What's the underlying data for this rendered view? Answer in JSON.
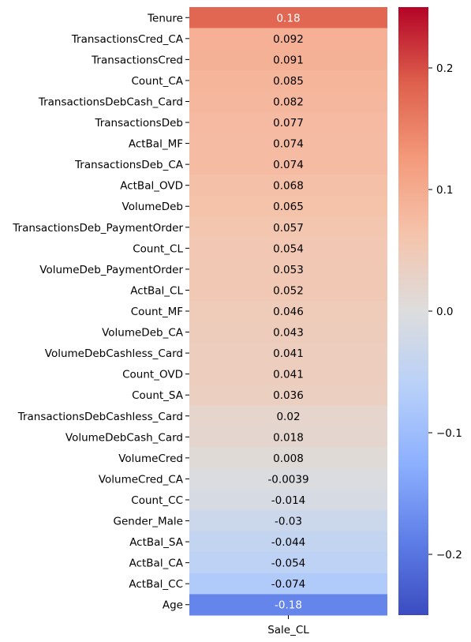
{
  "chart_data": {
    "type": "heatmap",
    "title": "",
    "xlabel": "",
    "ylabel": "",
    "column": "Sale_CL",
    "colormap": "coolwarm",
    "vmin": -0.25,
    "vmax": 0.25,
    "colorbar_ticks": [
      -0.2,
      -0.1,
      0.0,
      0.1,
      0.2
    ],
    "colorbar_tick_labels": [
      "−0.2",
      "−0.1",
      "0.0",
      "0.1",
      "0.2"
    ],
    "rows": [
      {
        "label": "Tenure",
        "value": 0.18,
        "text": "0.18"
      },
      {
        "label": "TransactionsCred_CA",
        "value": 0.092,
        "text": "0.092"
      },
      {
        "label": "TransactionsCred",
        "value": 0.091,
        "text": "0.091"
      },
      {
        "label": "Count_CA",
        "value": 0.085,
        "text": "0.085"
      },
      {
        "label": "TransactionsDebCash_Card",
        "value": 0.082,
        "text": "0.082"
      },
      {
        "label": "TransactionsDeb",
        "value": 0.077,
        "text": "0.077"
      },
      {
        "label": "ActBal_MF",
        "value": 0.074,
        "text": "0.074"
      },
      {
        "label": "TransactionsDeb_CA",
        "value": 0.074,
        "text": "0.074"
      },
      {
        "label": "ActBal_OVD",
        "value": 0.068,
        "text": "0.068"
      },
      {
        "label": "VolumeDeb",
        "value": 0.065,
        "text": "0.065"
      },
      {
        "label": "TransactionsDeb_PaymentOrder",
        "value": 0.057,
        "text": "0.057"
      },
      {
        "label": "Count_CL",
        "value": 0.054,
        "text": "0.054"
      },
      {
        "label": "VolumeDeb_PaymentOrder",
        "value": 0.053,
        "text": "0.053"
      },
      {
        "label": "ActBal_CL",
        "value": 0.052,
        "text": "0.052"
      },
      {
        "label": "Count_MF",
        "value": 0.046,
        "text": "0.046"
      },
      {
        "label": "VolumeDeb_CA",
        "value": 0.043,
        "text": "0.043"
      },
      {
        "label": "VolumeDebCashless_Card",
        "value": 0.041,
        "text": "0.041"
      },
      {
        "label": "Count_OVD",
        "value": 0.041,
        "text": "0.041"
      },
      {
        "label": "Count_SA",
        "value": 0.036,
        "text": "0.036"
      },
      {
        "label": "TransactionsDebCashless_Card",
        "value": 0.02,
        "text": "0.02"
      },
      {
        "label": "VolumeDebCash_Card",
        "value": 0.018,
        "text": "0.018"
      },
      {
        "label": "VolumeCred",
        "value": 0.008,
        "text": "0.008"
      },
      {
        "label": "VolumeCred_CA",
        "value": -0.0039,
        "text": "-0.0039"
      },
      {
        "label": "Count_CC",
        "value": -0.014,
        "text": "-0.014"
      },
      {
        "label": "Gender_Male",
        "value": -0.03,
        "text": "-0.03"
      },
      {
        "label": "ActBal_SA",
        "value": -0.044,
        "text": "-0.044"
      },
      {
        "label": "ActBal_CA",
        "value": -0.054,
        "text": "-0.054"
      },
      {
        "label": "ActBal_CC",
        "value": -0.074,
        "text": "-0.074"
      },
      {
        "label": "Age",
        "value": -0.18,
        "text": "-0.18"
      }
    ]
  }
}
